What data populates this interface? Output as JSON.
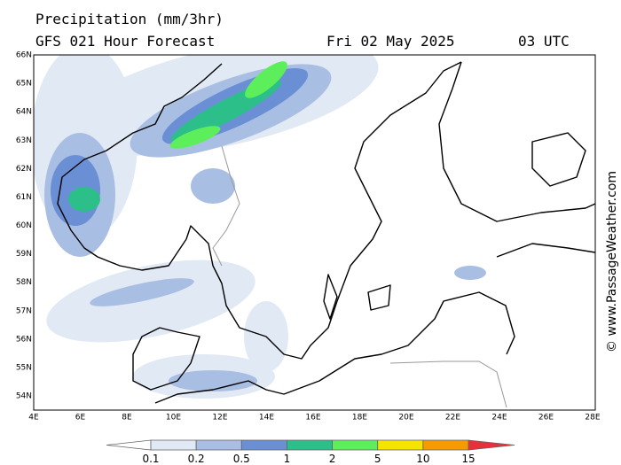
{
  "header": {
    "title": "Precipitation (mm/3hr)",
    "subtitle": "GFS 021 Hour Forecast",
    "date": "Fri 02 May 2025",
    "time": "03 UTC"
  },
  "map": {
    "lat_labels": [
      "66N",
      "65N",
      "64N",
      "63N",
      "62N",
      "61N",
      "60N",
      "59N",
      "58N",
      "57N",
      "56N",
      "55N",
      "54N"
    ],
    "lon_labels": [
      "4E",
      "6E",
      "8E",
      "10E",
      "12E",
      "14E",
      "16E",
      "18E",
      "20E",
      "22E",
      "24E",
      "26E",
      "28E"
    ]
  },
  "legend": {
    "levels": [
      "0.1",
      "0.2",
      "0.5",
      "1",
      "2",
      "5",
      "10",
      "15"
    ],
    "colors": [
      "#ffffff",
      "#e1e9f5",
      "#a9bee3",
      "#6b8fd5",
      "#2cbf8a",
      "#5def5b",
      "#f5e400",
      "#f59a00",
      "#e8303a"
    ]
  },
  "credit": "© www.PassageWeather.com"
}
